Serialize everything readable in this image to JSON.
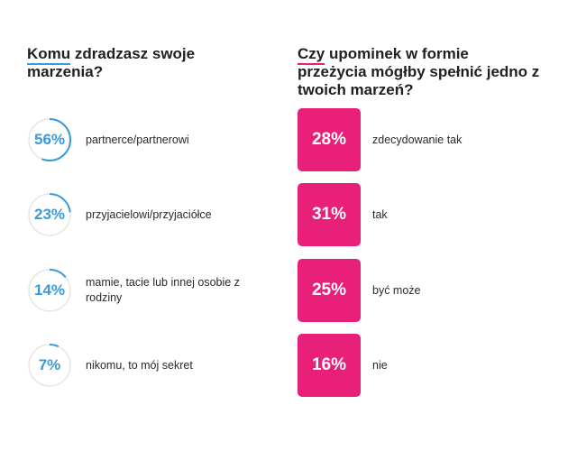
{
  "colors": {
    "ring_accent": "#3a9ad9",
    "ring_track": "#e6e6e6",
    "box_fill": "#e8207a",
    "left_underline": "#3a9ad9",
    "right_underline": "#e8207a"
  },
  "left": {
    "heading_first": "Komu",
    "heading_rest": " zdradzasz swoje marzenia?"
  },
  "right": {
    "heading_first": "Czy",
    "heading_rest": " upominek w formie przeżycia mógłby spełnić jedno z twoich marzeń?"
  },
  "chart_data": [
    {
      "type": "bar",
      "title": "Komu zdradzasz swoje marzenia?",
      "categories": [
        "partnerce/partnerowi",
        "przyjacielowi/przyjaciółce",
        "mamie, tacie lub innej osobie z rodziny",
        "nikomu, to mój sekret"
      ],
      "values": [
        56,
        23,
        14,
        7
      ],
      "value_labels": [
        "56%",
        "23%",
        "14%",
        "7%"
      ],
      "unit": "%"
    },
    {
      "type": "bar",
      "title": "Czy upominek w formie przeżycia mógłby spełnić jedno z twoich marzeń?",
      "categories": [
        "zdecydowanie tak",
        "tak",
        "być może",
        "nie"
      ],
      "values": [
        28,
        31,
        25,
        16
      ],
      "value_labels": [
        "28%",
        "31%",
        "25%",
        "16%"
      ],
      "unit": "%"
    }
  ]
}
